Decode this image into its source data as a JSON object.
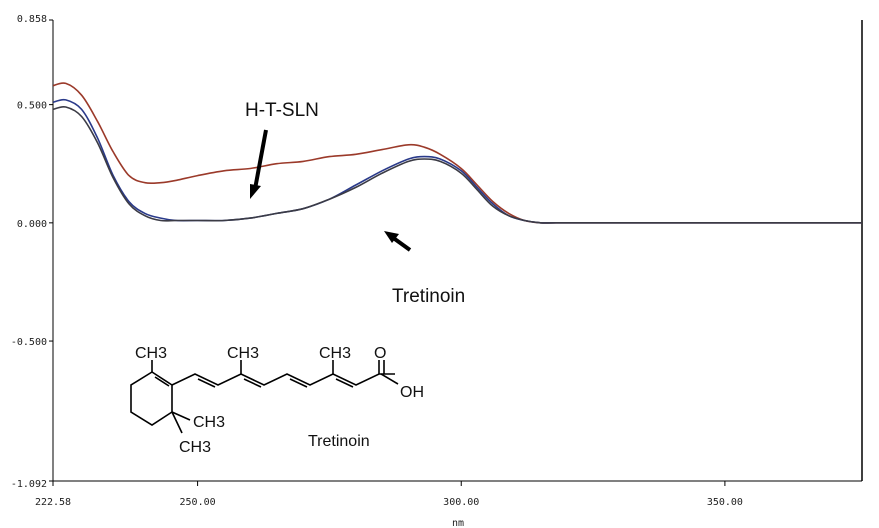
{
  "chart_data": {
    "type": "line",
    "xlabel": "nm",
    "ylabel": "",
    "xlim": [
      222.58,
      376
    ],
    "ylim": [
      -1.092,
      0.858
    ],
    "x_ticks": [
      "222.58",
      "250.00",
      "300.00",
      "350.00"
    ],
    "y_ticks": [
      "0.858",
      "0.500",
      "0.000",
      "-0.500",
      "-1.092"
    ],
    "grid": false,
    "legend": "none",
    "series": [
      {
        "color": "#9b3a2a",
        "x": [
          222.6,
          225,
          228,
          231,
          234,
          237,
          240,
          243,
          246,
          250,
          255,
          260,
          265,
          270,
          275,
          280,
          285,
          290,
          293,
          296,
          300,
          303,
          306,
          309,
          312,
          315,
          318,
          325,
          340,
          360,
          376
        ],
        "y": [
          0.58,
          0.59,
          0.54,
          0.43,
          0.3,
          0.2,
          0.17,
          0.17,
          0.18,
          0.2,
          0.22,
          0.23,
          0.25,
          0.26,
          0.28,
          0.29,
          0.31,
          0.33,
          0.32,
          0.29,
          0.23,
          0.16,
          0.09,
          0.04,
          0.01,
          0.0,
          0.0,
          0.0,
          0.0,
          0.0,
          0.0
        ]
      },
      {
        "color": "#2a3a8a",
        "x": [
          222.6,
          225,
          228,
          231,
          234,
          237,
          240,
          243,
          246,
          250,
          255,
          260,
          265,
          270,
          275,
          280,
          285,
          290,
          293,
          296,
          300,
          303,
          306,
          309,
          312,
          315,
          318,
          325,
          340,
          360,
          376
        ],
        "y": [
          0.51,
          0.52,
          0.48,
          0.36,
          0.2,
          0.09,
          0.04,
          0.02,
          0.01,
          0.01,
          0.01,
          0.02,
          0.04,
          0.06,
          0.1,
          0.16,
          0.22,
          0.27,
          0.28,
          0.27,
          0.22,
          0.15,
          0.08,
          0.03,
          0.01,
          0.0,
          0.0,
          0.0,
          0.0,
          0.0,
          0.0
        ]
      },
      {
        "color": "#3b3b45",
        "x": [
          222.6,
          225,
          228,
          231,
          234,
          237,
          240,
          243,
          246,
          250,
          255,
          260,
          265,
          270,
          275,
          280,
          285,
          290,
          293,
          296,
          300,
          303,
          306,
          309,
          312,
          315,
          318,
          325,
          340,
          360,
          376
        ],
        "y": [
          0.48,
          0.49,
          0.45,
          0.34,
          0.19,
          0.08,
          0.03,
          0.01,
          0.01,
          0.01,
          0.01,
          0.02,
          0.04,
          0.06,
          0.1,
          0.15,
          0.21,
          0.26,
          0.27,
          0.26,
          0.21,
          0.14,
          0.07,
          0.03,
          0.01,
          0.0,
          0.0,
          0.0,
          0.0,
          0.0,
          0.0
        ]
      }
    ],
    "annotations": [
      {
        "text": "H-T-SLN"
      },
      {
        "text": "Tretinoin"
      }
    ],
    "structure_labels": {
      "ch3_top_left": "CH3",
      "ch3_middle": "CH3",
      "ch3_right": "CH3",
      "oh": "OH",
      "o": "O",
      "ch3_ring_a": "CH3",
      "ch3_ring_b": "CH3",
      "name": "Tretinoin"
    }
  }
}
